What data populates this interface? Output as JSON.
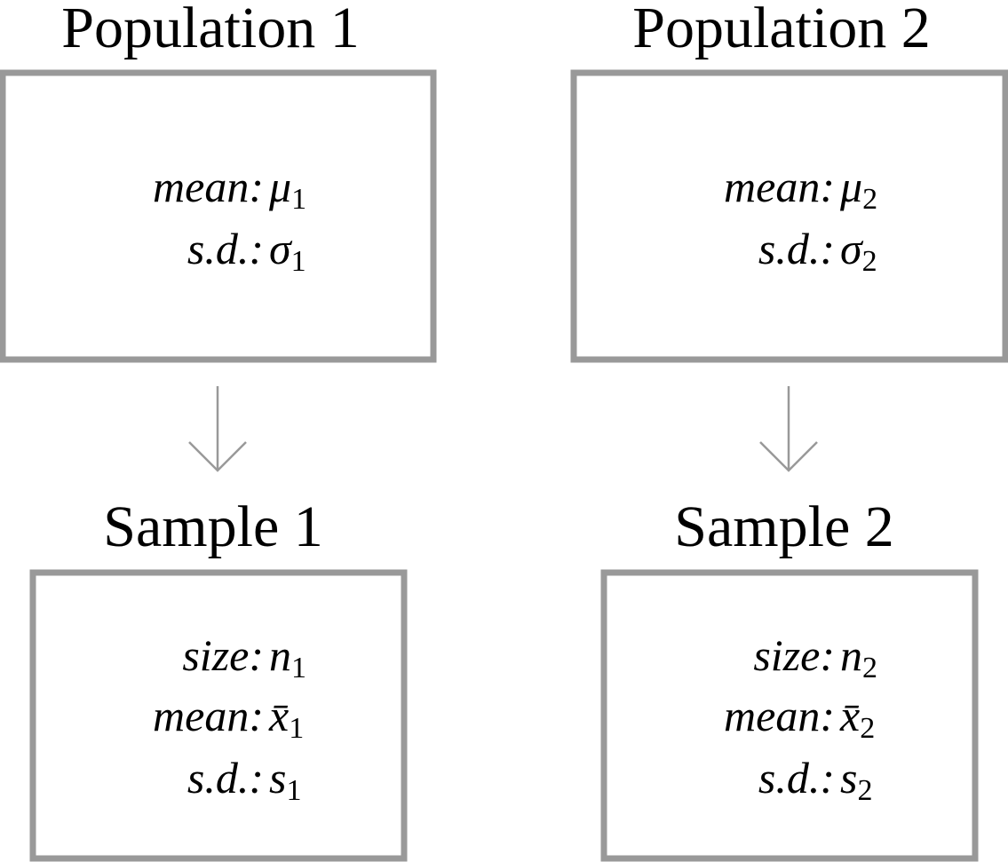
{
  "panels": [
    {
      "title": "Population 1",
      "rows": [
        {
          "label": "mean:",
          "symbol": "μ",
          "sub": "1"
        },
        {
          "label": "s.d.:",
          "symbol": "σ",
          "sub": "1"
        }
      ]
    },
    {
      "title": "Population 2",
      "rows": [
        {
          "label": "mean:",
          "symbol": "μ",
          "sub": "2"
        },
        {
          "label": "s.d.:",
          "symbol": "σ",
          "sub": "2"
        }
      ]
    },
    {
      "title": "Sample 1",
      "rows": [
        {
          "label": "size:",
          "symbol": "n",
          "sub": "1"
        },
        {
          "label": "mean:",
          "symbol": "x̄",
          "sub": "1"
        },
        {
          "label": "s.d.:",
          "symbol": "s",
          "sub": "1"
        }
      ]
    },
    {
      "title": "Sample 2",
      "rows": [
        {
          "label": "size:",
          "symbol": "n",
          "sub": "2"
        },
        {
          "label": "mean:",
          "symbol": "x̄",
          "sub": "2"
        },
        {
          "label": "s.d.:",
          "symbol": "s",
          "sub": "2"
        }
      ]
    }
  ]
}
